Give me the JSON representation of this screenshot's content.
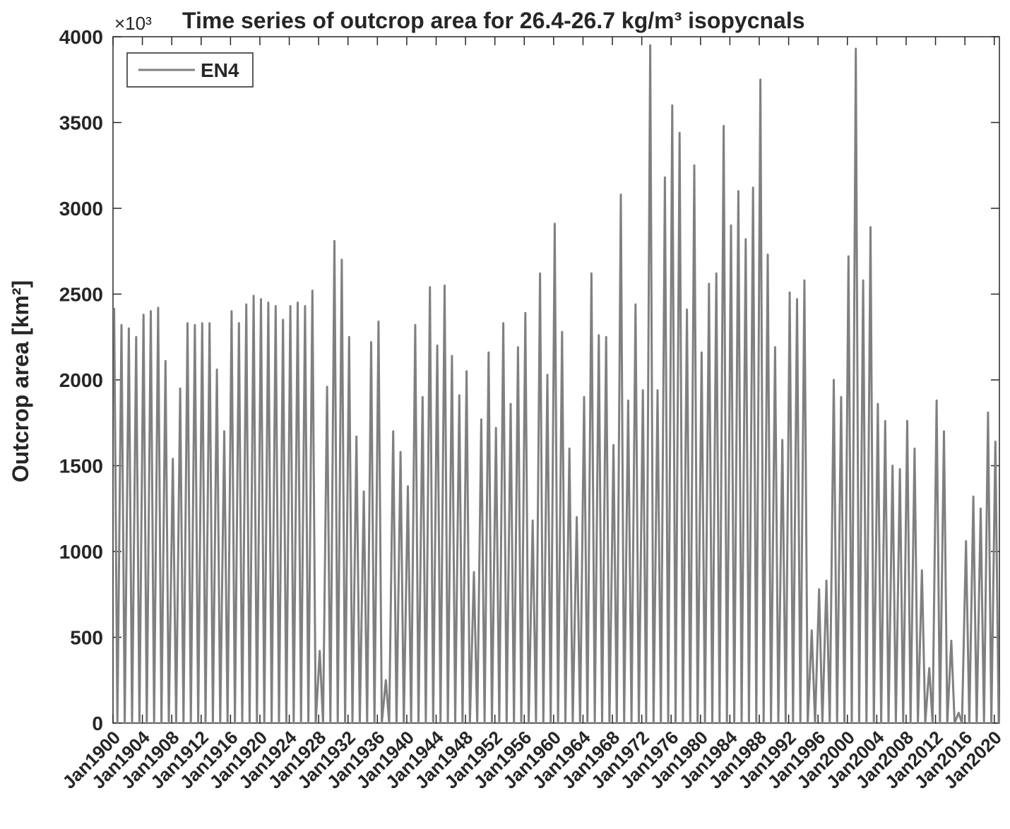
{
  "chart_data": {
    "type": "line",
    "title": "Time series of outcrop area for 26.4-26.7 kg/m³ isopycnals",
    "y_multiplier": "×10³",
    "ylabel": "Outcrop area [km²]",
    "xlim": [
      1900,
      2020.7
    ],
    "ylim": [
      0,
      4000
    ],
    "yticks": [
      0,
      500,
      1000,
      1500,
      2000,
      2500,
      3000,
      3500,
      4000
    ],
    "xticks": [
      {
        "value": 1900,
        "label": "Jan1900"
      },
      {
        "value": 1904,
        "label": "Jan1904"
      },
      {
        "value": 1908,
        "label": "Jan1908"
      },
      {
        "value": 1912,
        "label": "Jan1912"
      },
      {
        "value": 1916,
        "label": "Jan1916"
      },
      {
        "value": 1920,
        "label": "Jan1920"
      },
      {
        "value": 1924,
        "label": "Jan1924"
      },
      {
        "value": 1928,
        "label": "Jan1928"
      },
      {
        "value": 1932,
        "label": "Jan1932"
      },
      {
        "value": 1936,
        "label": "Jan1936"
      },
      {
        "value": 1940,
        "label": "Jan1940"
      },
      {
        "value": 1944,
        "label": "Jan1944"
      },
      {
        "value": 1948,
        "label": "Jan1948"
      },
      {
        "value": 1952,
        "label": "Jan1952"
      },
      {
        "value": 1956,
        "label": "Jan1956"
      },
      {
        "value": 1960,
        "label": "Jan1960"
      },
      {
        "value": 1964,
        "label": "Jan1964"
      },
      {
        "value": 1968,
        "label": "Jan1968"
      },
      {
        "value": 1972,
        "label": "Jan1972"
      },
      {
        "value": 1976,
        "label": "Jan1976"
      },
      {
        "value": 1980,
        "label": "Jan1980"
      },
      {
        "value": 1984,
        "label": "Jan1984"
      },
      {
        "value": 1988,
        "label": "Jan1988"
      },
      {
        "value": 1992,
        "label": "Jan1992"
      },
      {
        "value": 1996,
        "label": "Jan1996"
      },
      {
        "value": 2000,
        "label": "Jan2000"
      },
      {
        "value": 2004,
        "label": "Jan2004"
      },
      {
        "value": 2008,
        "label": "Jan2008"
      },
      {
        "value": 2012,
        "label": "Jan2012"
      },
      {
        "value": 2016,
        "label": "Jan2016"
      },
      {
        "value": 2020,
        "label": "Jan2020"
      }
    ],
    "legend": "northwest",
    "series": [
      {
        "name": "EN4",
        "color": "#808080",
        "x": [
          1900.15,
          1900.6,
          1901.15,
          1901.6,
          1902.15,
          1902.6,
          1903.15,
          1903.6,
          1904.15,
          1904.6,
          1905.15,
          1905.6,
          1906.15,
          1906.6,
          1907.15,
          1907.6,
          1908.15,
          1908.6,
          1909.15,
          1909.6,
          1910.15,
          1910.6,
          1911.15,
          1911.6,
          1912.15,
          1912.6,
          1913.15,
          1913.6,
          1914.15,
          1914.6,
          1915.15,
          1915.6,
          1916.15,
          1916.6,
          1917.15,
          1917.6,
          1918.15,
          1918.6,
          1919.15,
          1919.6,
          1920.15,
          1920.6,
          1921.15,
          1921.6,
          1922.15,
          1922.6,
          1923.15,
          1923.6,
          1924.15,
          1924.6,
          1925.15,
          1925.6,
          1926.15,
          1926.6,
          1927.15,
          1927.6,
          1928.15,
          1928.6,
          1929.15,
          1929.6,
          1930.15,
          1930.6,
          1931.15,
          1931.6,
          1932.15,
          1932.6,
          1933.15,
          1933.6,
          1934.15,
          1934.6,
          1935.15,
          1935.6,
          1936.15,
          1936.6,
          1937.15,
          1937.6,
          1938.15,
          1938.6,
          1939.15,
          1939.6,
          1940.15,
          1940.6,
          1941.15,
          1941.6,
          1942.15,
          1942.6,
          1943.15,
          1943.6,
          1944.15,
          1944.6,
          1945.15,
          1945.6,
          1946.15,
          1946.6,
          1947.15,
          1947.6,
          1948.15,
          1948.6,
          1949.15,
          1949.6,
          1950.15,
          1950.6,
          1951.15,
          1951.6,
          1952.15,
          1952.6,
          1953.15,
          1953.6,
          1954.15,
          1954.6,
          1955.15,
          1955.6,
          1956.15,
          1956.6,
          1957.15,
          1957.6,
          1958.15,
          1958.6,
          1959.15,
          1959.6,
          1960.15,
          1960.6,
          1961.15,
          1961.6,
          1962.15,
          1962.6,
          1963.15,
          1963.6,
          1964.15,
          1964.6,
          1965.15,
          1965.6,
          1966.15,
          1966.6,
          1967.15,
          1967.6,
          1968.15,
          1968.6,
          1969.15,
          1969.6,
          1970.15,
          1970.6,
          1971.15,
          1971.6,
          1972.15,
          1972.6,
          1973.15,
          1973.6,
          1974.15,
          1974.6,
          1975.15,
          1975.6,
          1976.15,
          1976.6,
          1977.15,
          1977.6,
          1978.15,
          1978.6,
          1979.15,
          1979.6,
          1980.15,
          1980.6,
          1981.15,
          1981.6,
          1982.15,
          1982.6,
          1983.15,
          1983.6,
          1984.15,
          1984.6,
          1985.15,
          1985.6,
          1986.15,
          1986.6,
          1987.15,
          1987.6,
          1988.15,
          1988.6,
          1989.15,
          1989.6,
          1990.15,
          1990.6,
          1991.15,
          1991.6,
          1992.15,
          1992.6,
          1993.15,
          1993.6,
          1994.15,
          1994.6,
          1995.15,
          1995.6,
          1996.15,
          1996.6,
          1997.15,
          1997.6,
          1998.15,
          1998.6,
          1999.15,
          1999.6,
          2000.15,
          2000.6,
          2001.15,
          2001.6,
          2002.15,
          2002.6,
          2003.15,
          2003.6,
          2004.15,
          2004.6,
          2005.15,
          2005.6,
          2006.15,
          2006.6,
          2007.15,
          2007.6,
          2008.15,
          2008.6,
          2009.15,
          2009.6,
          2010.15,
          2010.6,
          2011.15,
          2011.6,
          2012.15,
          2012.6,
          2013.15,
          2013.6,
          2014.15,
          2014.6,
          2015.15,
          2015.6,
          2016.15,
          2016.6,
          2017.15,
          2017.6,
          2018.15,
          2018.6,
          2019.15,
          2019.6,
          2020.15,
          2020.6
        ],
        "values": [
          2420,
          0,
          2320,
          0,
          2300,
          0,
          2250,
          0,
          2380,
          0,
          2400,
          0,
          2420,
          0,
          2110,
          0,
          1540,
          0,
          1950,
          0,
          2330,
          0,
          2320,
          0,
          2330,
          0,
          2330,
          0,
          2060,
          0,
          1700,
          0,
          2400,
          0,
          2330,
          0,
          2440,
          0,
          2490,
          0,
          2470,
          0,
          2450,
          0,
          2430,
          0,
          2350,
          0,
          2430,
          0,
          2450,
          0,
          2430,
          0,
          2520,
          0,
          420,
          0,
          1960,
          0,
          2810,
          0,
          2700,
          0,
          2250,
          0,
          1670,
          0,
          1350,
          0,
          2220,
          0,
          2340,
          0,
          250,
          0,
          1700,
          0,
          1580,
          0,
          1380,
          0,
          2320,
          0,
          1900,
          0,
          2540,
          0,
          2200,
          0,
          2550,
          0,
          2140,
          0,
          1910,
          0,
          2050,
          0,
          880,
          0,
          1770,
          0,
          2160,
          0,
          1720,
          0,
          2330,
          0,
          1860,
          0,
          2190,
          0,
          2390,
          0,
          1180,
          0,
          2620,
          0,
          2030,
          0,
          2910,
          0,
          2280,
          0,
          1600,
          0,
          1200,
          0,
          1900,
          0,
          2620,
          0,
          2260,
          0,
          2250,
          0,
          1620,
          0,
          3080,
          0,
          1880,
          0,
          2440,
          0,
          1940,
          0,
          3950,
          0,
          1940,
          0,
          3180,
          0,
          3600,
          0,
          3440,
          0,
          2410,
          0,
          3250,
          0,
          2160,
          0,
          2560,
          0,
          2620,
          0,
          3480,
          0,
          2900,
          0,
          3100,
          0,
          2820,
          0,
          3120,
          0,
          3750,
          0,
          2730,
          0,
          2190,
          0,
          1650,
          0,
          2510,
          0,
          2470,
          0,
          2580,
          0,
          540,
          0,
          780,
          0,
          830,
          0,
          2000,
          0,
          1900,
          0,
          2720,
          0,
          3930,
          0,
          2580,
          0,
          2890,
          0,
          1860,
          0,
          1760,
          0,
          1500,
          0,
          1480,
          0,
          1760,
          0,
          1600,
          0,
          890,
          0,
          320,
          0,
          1880,
          0,
          1700,
          0,
          480,
          0,
          60,
          0,
          1060,
          0,
          1320,
          0,
          1250,
          0,
          1810,
          0,
          1640,
          0
        ]
      }
    ]
  }
}
